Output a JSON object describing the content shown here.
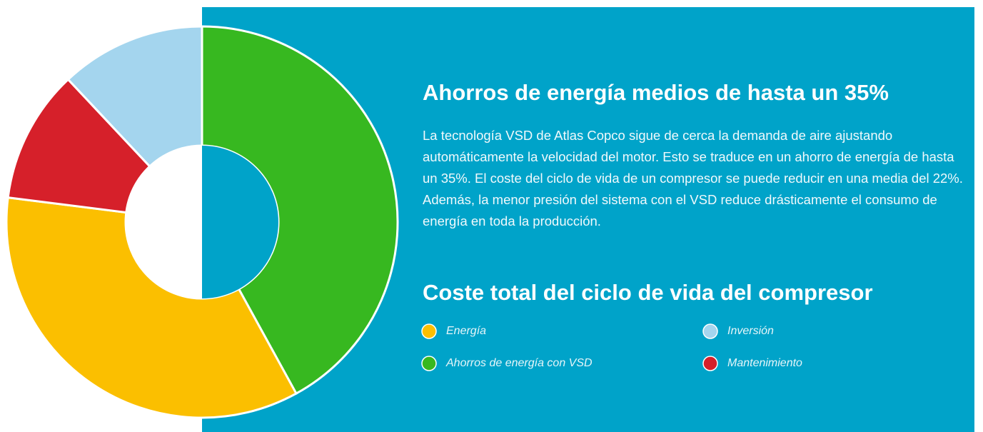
{
  "heading": "Ahorros de energía medios de hasta un 35%",
  "body": "La tecnología VSD de Atlas Copco sigue de cerca la demanda de aire ajustando automáticamente la velocidad del motor. Esto se traduce en un ahorro de energía de hasta un 35%. El coste del ciclo de vida de un compresor se puede reducir en una media del 22%. Además, la menor presión del sistema con el VSD reduce drásticamente el consumo de energía en toda la producción.",
  "chart_data": {
    "type": "pie",
    "donut": true,
    "title": "Coste total del ciclo de vida del compresor",
    "categories": [
      "Ahorros de energía con VSD",
      "Energía",
      "Mantenimiento",
      "Inversión"
    ],
    "values": [
      42,
      35,
      11,
      12
    ],
    "colors": [
      "#37b820",
      "#fbbf00",
      "#d6202a",
      "#a4d5ee"
    ]
  }
}
